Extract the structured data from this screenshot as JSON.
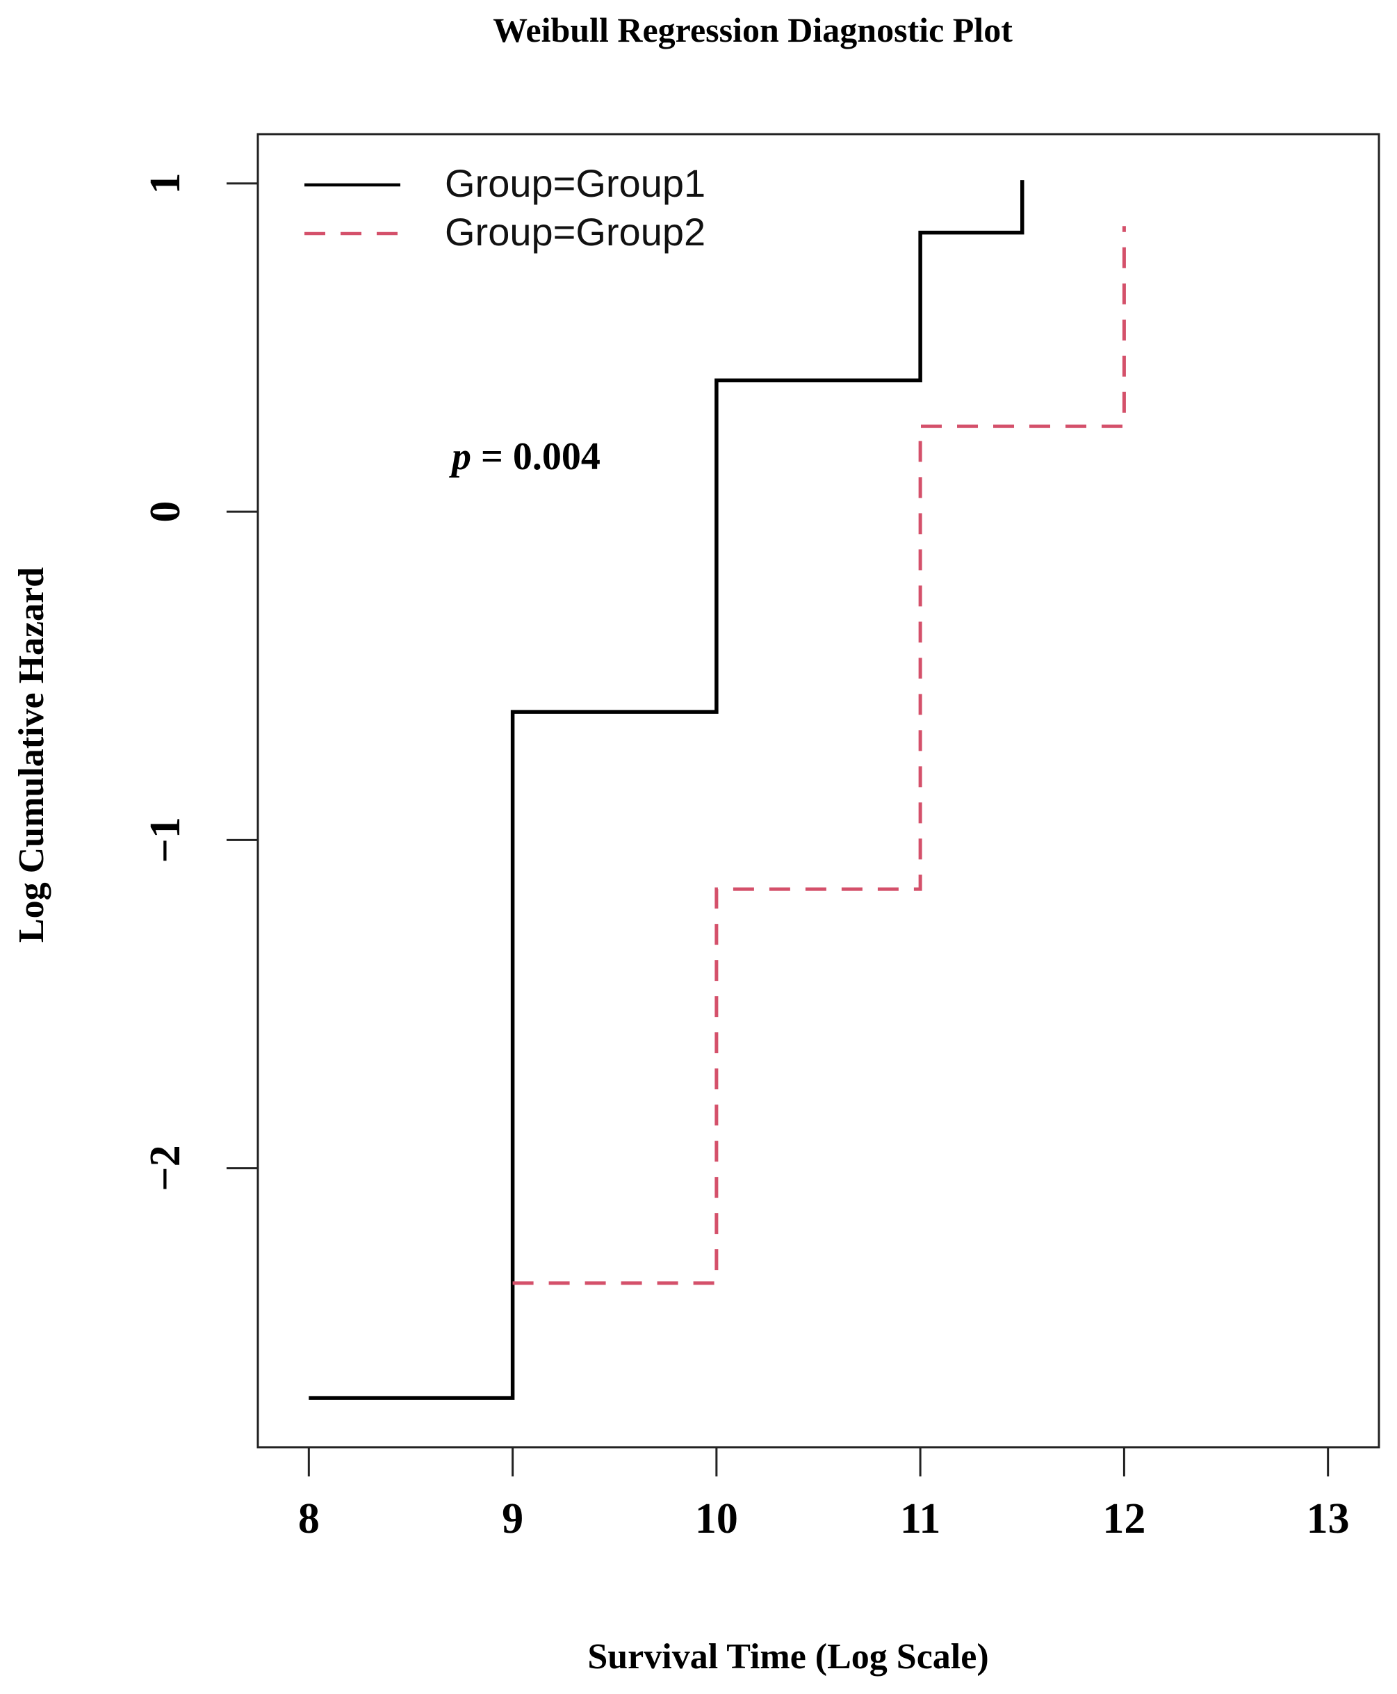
{
  "chart_data": {
    "type": "line",
    "step": true,
    "title": "Weibull Regression Diagnostic Plot",
    "xlabel": "Survival Time (Log Scale)",
    "ylabel": "Log Cumulative Hazard",
    "xlim": [
      7.75,
      13.25
    ],
    "ylim": [
      -2.85,
      1.15
    ],
    "x_ticks": [
      8,
      9,
      10,
      11,
      12,
      13
    ],
    "x_tick_labels": [
      "8",
      "9",
      "10",
      "11",
      "12",
      "13"
    ],
    "y_ticks": [
      -2,
      -1,
      0,
      1
    ],
    "y_tick_labels": [
      "−2",
      "−1",
      "0",
      "1"
    ],
    "legend_position": "top-left",
    "annotation": {
      "prefix": "p",
      "text": " = 0.004",
      "x": 9.5,
      "y": 0.15
    },
    "series": [
      {
        "name": "Group=Group1",
        "color": "#000000",
        "dash": "solid",
        "x": [
          8.0,
          9.0,
          10.0,
          11.0,
          11.5
        ],
        "y": [
          -2.7,
          -0.61,
          0.4,
          0.85,
          1.01
        ]
      },
      {
        "name": "Group=Group2",
        "color": "#d4506a",
        "dash": "dashed",
        "x": [
          9.0,
          10.0,
          11.0,
          12.0
        ],
        "y": [
          -2.35,
          -1.15,
          0.26,
          0.87
        ]
      }
    ]
  }
}
